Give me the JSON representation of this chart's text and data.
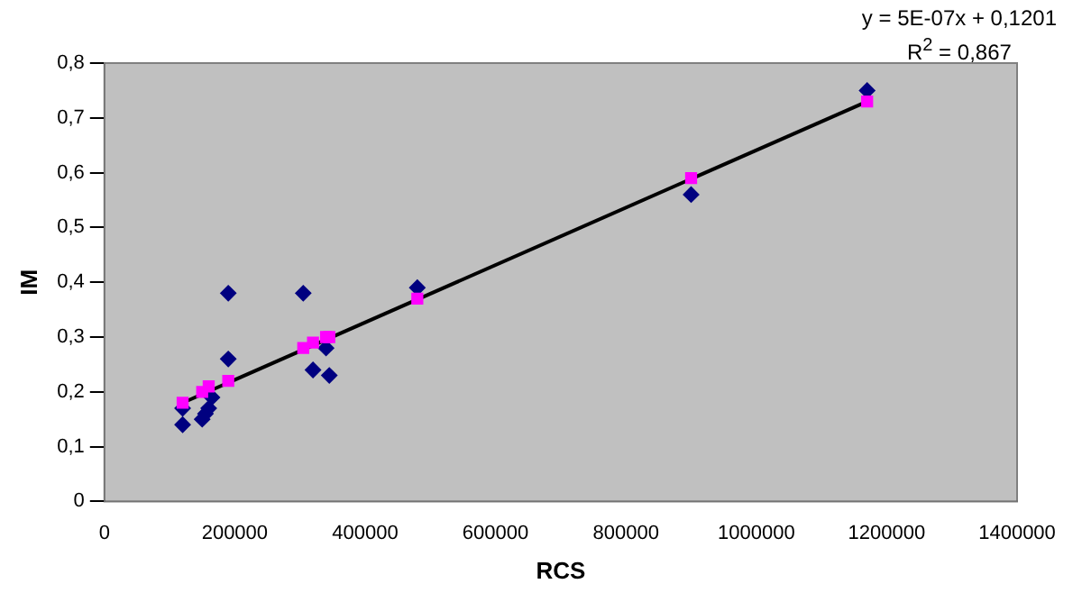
{
  "chart_data": {
    "type": "scatter",
    "xlabel": "RCS",
    "ylabel": "IM",
    "xlim": [
      0,
      1400000
    ],
    "xticks": [
      0,
      200000,
      400000,
      600000,
      800000,
      1000000,
      1200000,
      1400000
    ],
    "ylim": [
      0,
      0.8
    ],
    "yticks": [
      {
        "value": 0,
        "label": "0"
      },
      {
        "value": 0.1,
        "label": "0,1"
      },
      {
        "value": 0.2,
        "label": "0,2"
      },
      {
        "value": 0.3,
        "label": "0,3"
      },
      {
        "value": 0.4,
        "label": "0,4"
      },
      {
        "value": 0.5,
        "label": "0,5"
      },
      {
        "value": 0.6,
        "label": "0,6"
      },
      {
        "value": 0.7,
        "label": "0,7"
      },
      {
        "value": 0.8,
        "label": "0,8"
      }
    ],
    "grid": false,
    "legend": false,
    "annotations": [
      "y = 5E-07x  + 0,1201",
      "R$^{2}$ = 0,867"
    ],
    "series": [
      {
        "marker": "diamond",
        "color": "#000080",
        "x": [
          120000,
          120000,
          150000,
          155000,
          160000,
          165000,
          190000,
          190000,
          305000,
          320000,
          340000,
          345000,
          480000,
          900000,
          1170000
        ],
        "values": [
          0.14,
          0.17,
          0.15,
          0.16,
          0.17,
          0.19,
          0.38,
          0.26,
          0.38,
          0.24,
          0.28,
          0.23,
          0.39,
          0.56,
          0.75
        ]
      },
      {
        "marker": "square",
        "color": "#ff00ff",
        "x": [
          120000,
          150000,
          160000,
          190000,
          305000,
          320000,
          340000,
          345000,
          480000,
          900000,
          1170000
        ],
        "values": [
          0.18,
          0.2,
          0.21,
          0.22,
          0.28,
          0.29,
          0.3,
          0.3,
          0.37,
          0.59,
          0.73
        ]
      },
      {
        "type": "line",
        "marker": "none",
        "line_style": "solid",
        "color": "#000000",
        "x": [
          120000,
          1170000
        ],
        "values": [
          0.18,
          0.73
        ]
      }
    ]
  }
}
